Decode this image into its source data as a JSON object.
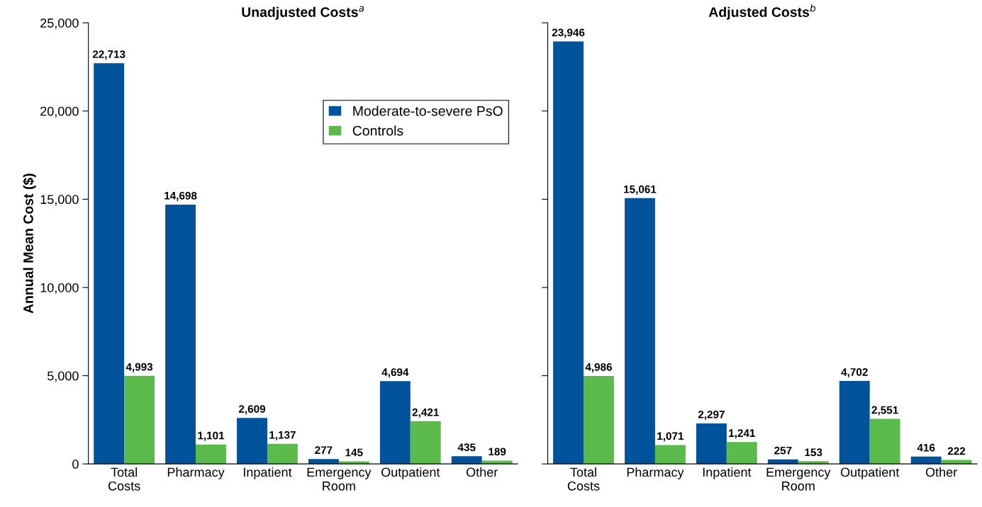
{
  "chart_data": [
    {
      "type": "bar",
      "title": "Unadjusted Costs$^{a}$",
      "ylabel": "Annual Mean Cost ($)",
      "categories": [
        "Total\nCosts",
        "Pharmacy",
        "Inpatient",
        "Emergency\nRoom",
        "Outpatient",
        "Other"
      ],
      "series": [
        {
          "name": "Moderate-to-severe PsO",
          "color": "#00529b",
          "values": [
            22713,
            14698,
            2609,
            277,
            4694,
            435
          ],
          "value_labels": [
            "22,713",
            "14,698",
            "2,609",
            "277",
            "4,694",
            "435"
          ]
        },
        {
          "name": "Controls",
          "color": "#5bbb4a",
          "values": [
            4993,
            1101,
            1137,
            145,
            2421,
            189
          ],
          "value_labels": [
            "4,993",
            "1,101",
            "1,137",
            "145",
            "2,421",
            "189"
          ]
        }
      ],
      "ylim": [
        0,
        25000
      ],
      "yticks": [
        {
          "value": 0,
          "label": "0"
        },
        {
          "value": 5000,
          "label": "5,000"
        },
        {
          "value": 10000,
          "label": "10,000"
        },
        {
          "value": 15000,
          "label": "15,000"
        },
        {
          "value": 20000,
          "label": "20,000"
        },
        {
          "value": 25000,
          "label": "25,000"
        }
      ],
      "legend": "top right",
      "grid": false
    },
    {
      "type": "bar",
      "title": "Adjusted Costs$^{b}$",
      "categories": [
        "Total\nCosts",
        "Pharmacy",
        "Inpatient",
        "Emergency\nRoom",
        "Outpatient",
        "Other"
      ],
      "series": [
        {
          "color": "#00529b",
          "values": [
            23946,
            15061,
            2297,
            257,
            4702,
            416
          ],
          "value_labels": [
            "23,946",
            "15,061",
            "2,297",
            "257",
            "4,702",
            "416"
          ]
        },
        {
          "color": "#5bbb4a",
          "values": [
            4986,
            1071,
            1241,
            153,
            2551,
            222
          ],
          "value_labels": [
            "4,986",
            "1,071",
            "1,241",
            "153",
            "2,551",
            "222"
          ]
        }
      ],
      "ylim": [
        0,
        25000
      ],
      "yticks": [
        {
          "value": 0,
          "label": null
        },
        {
          "value": 5000,
          "label": null
        },
        {
          "value": 10000,
          "label": null
        },
        {
          "value": 15000,
          "label": null
        },
        {
          "value": 20000,
          "label": null
        },
        {
          "value": 25000,
          "label": null
        }
      ],
      "tick_labels": "x",
      "grid": false
    }
  ]
}
